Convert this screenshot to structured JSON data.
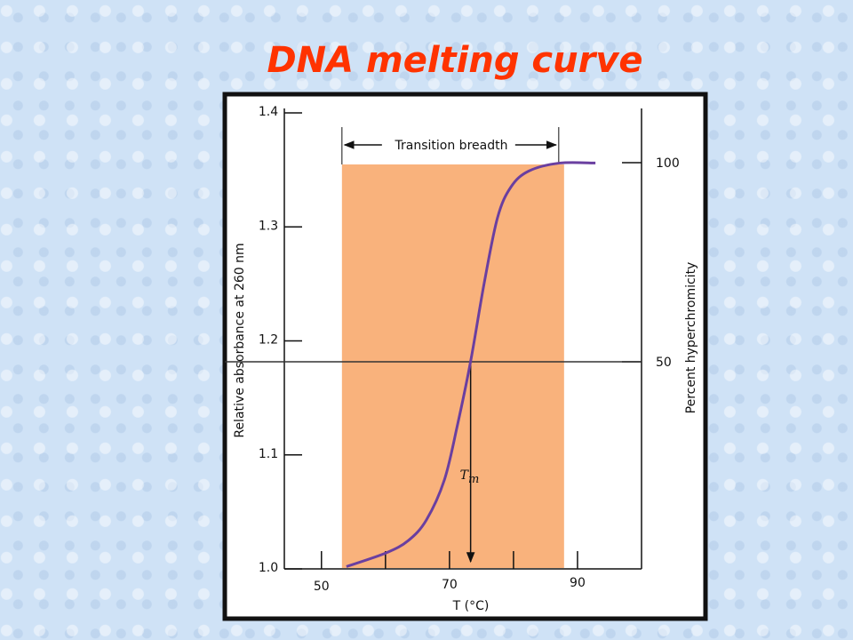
{
  "chart_data": {
    "type": "line",
    "title": "DNA melting curve",
    "xlabel": "T (°C)",
    "ylabel": "Relative absorbance at 260 nm",
    "y2label": "Percent hyperchromicity",
    "xlim": [
      44.2,
      100
    ],
    "xticks": [
      50,
      70,
      90
    ],
    "xminor_ticks": [
      60,
      80
    ],
    "ylim": [
      1.0,
      1.4
    ],
    "yticks": [
      {
        "value": 1.0,
        "label": "1.0"
      },
      1.1,
      1.2,
      1.3,
      1.4
    ],
    "y2lim": [
      -2,
      112.5
    ],
    "y2ticks": [
      50,
      100
    ],
    "transition_range": [
      53.2,
      87.9
    ],
    "transition_label": "Transition breadth",
    "shade_color": "#f9b27c",
    "tm": 73.3,
    "tm_label": "T",
    "tm_sub": "m",
    "midline_y2": 50,
    "series": [
      {
        "name": "Absorbance",
        "color": "#6a3fa0",
        "x": [
          53.9,
          60.1,
          63.6,
          66.4,
          69.2,
          71.2,
          73.3,
          75.4,
          77.5,
          79.6,
          82.4,
          87.2,
          92.8
        ],
        "values": [
          1.002,
          1.014,
          1.025,
          1.043,
          1.078,
          1.125,
          1.182,
          1.25,
          1.308,
          1.335,
          1.349,
          1.356,
          1.356
        ]
      }
    ]
  }
}
